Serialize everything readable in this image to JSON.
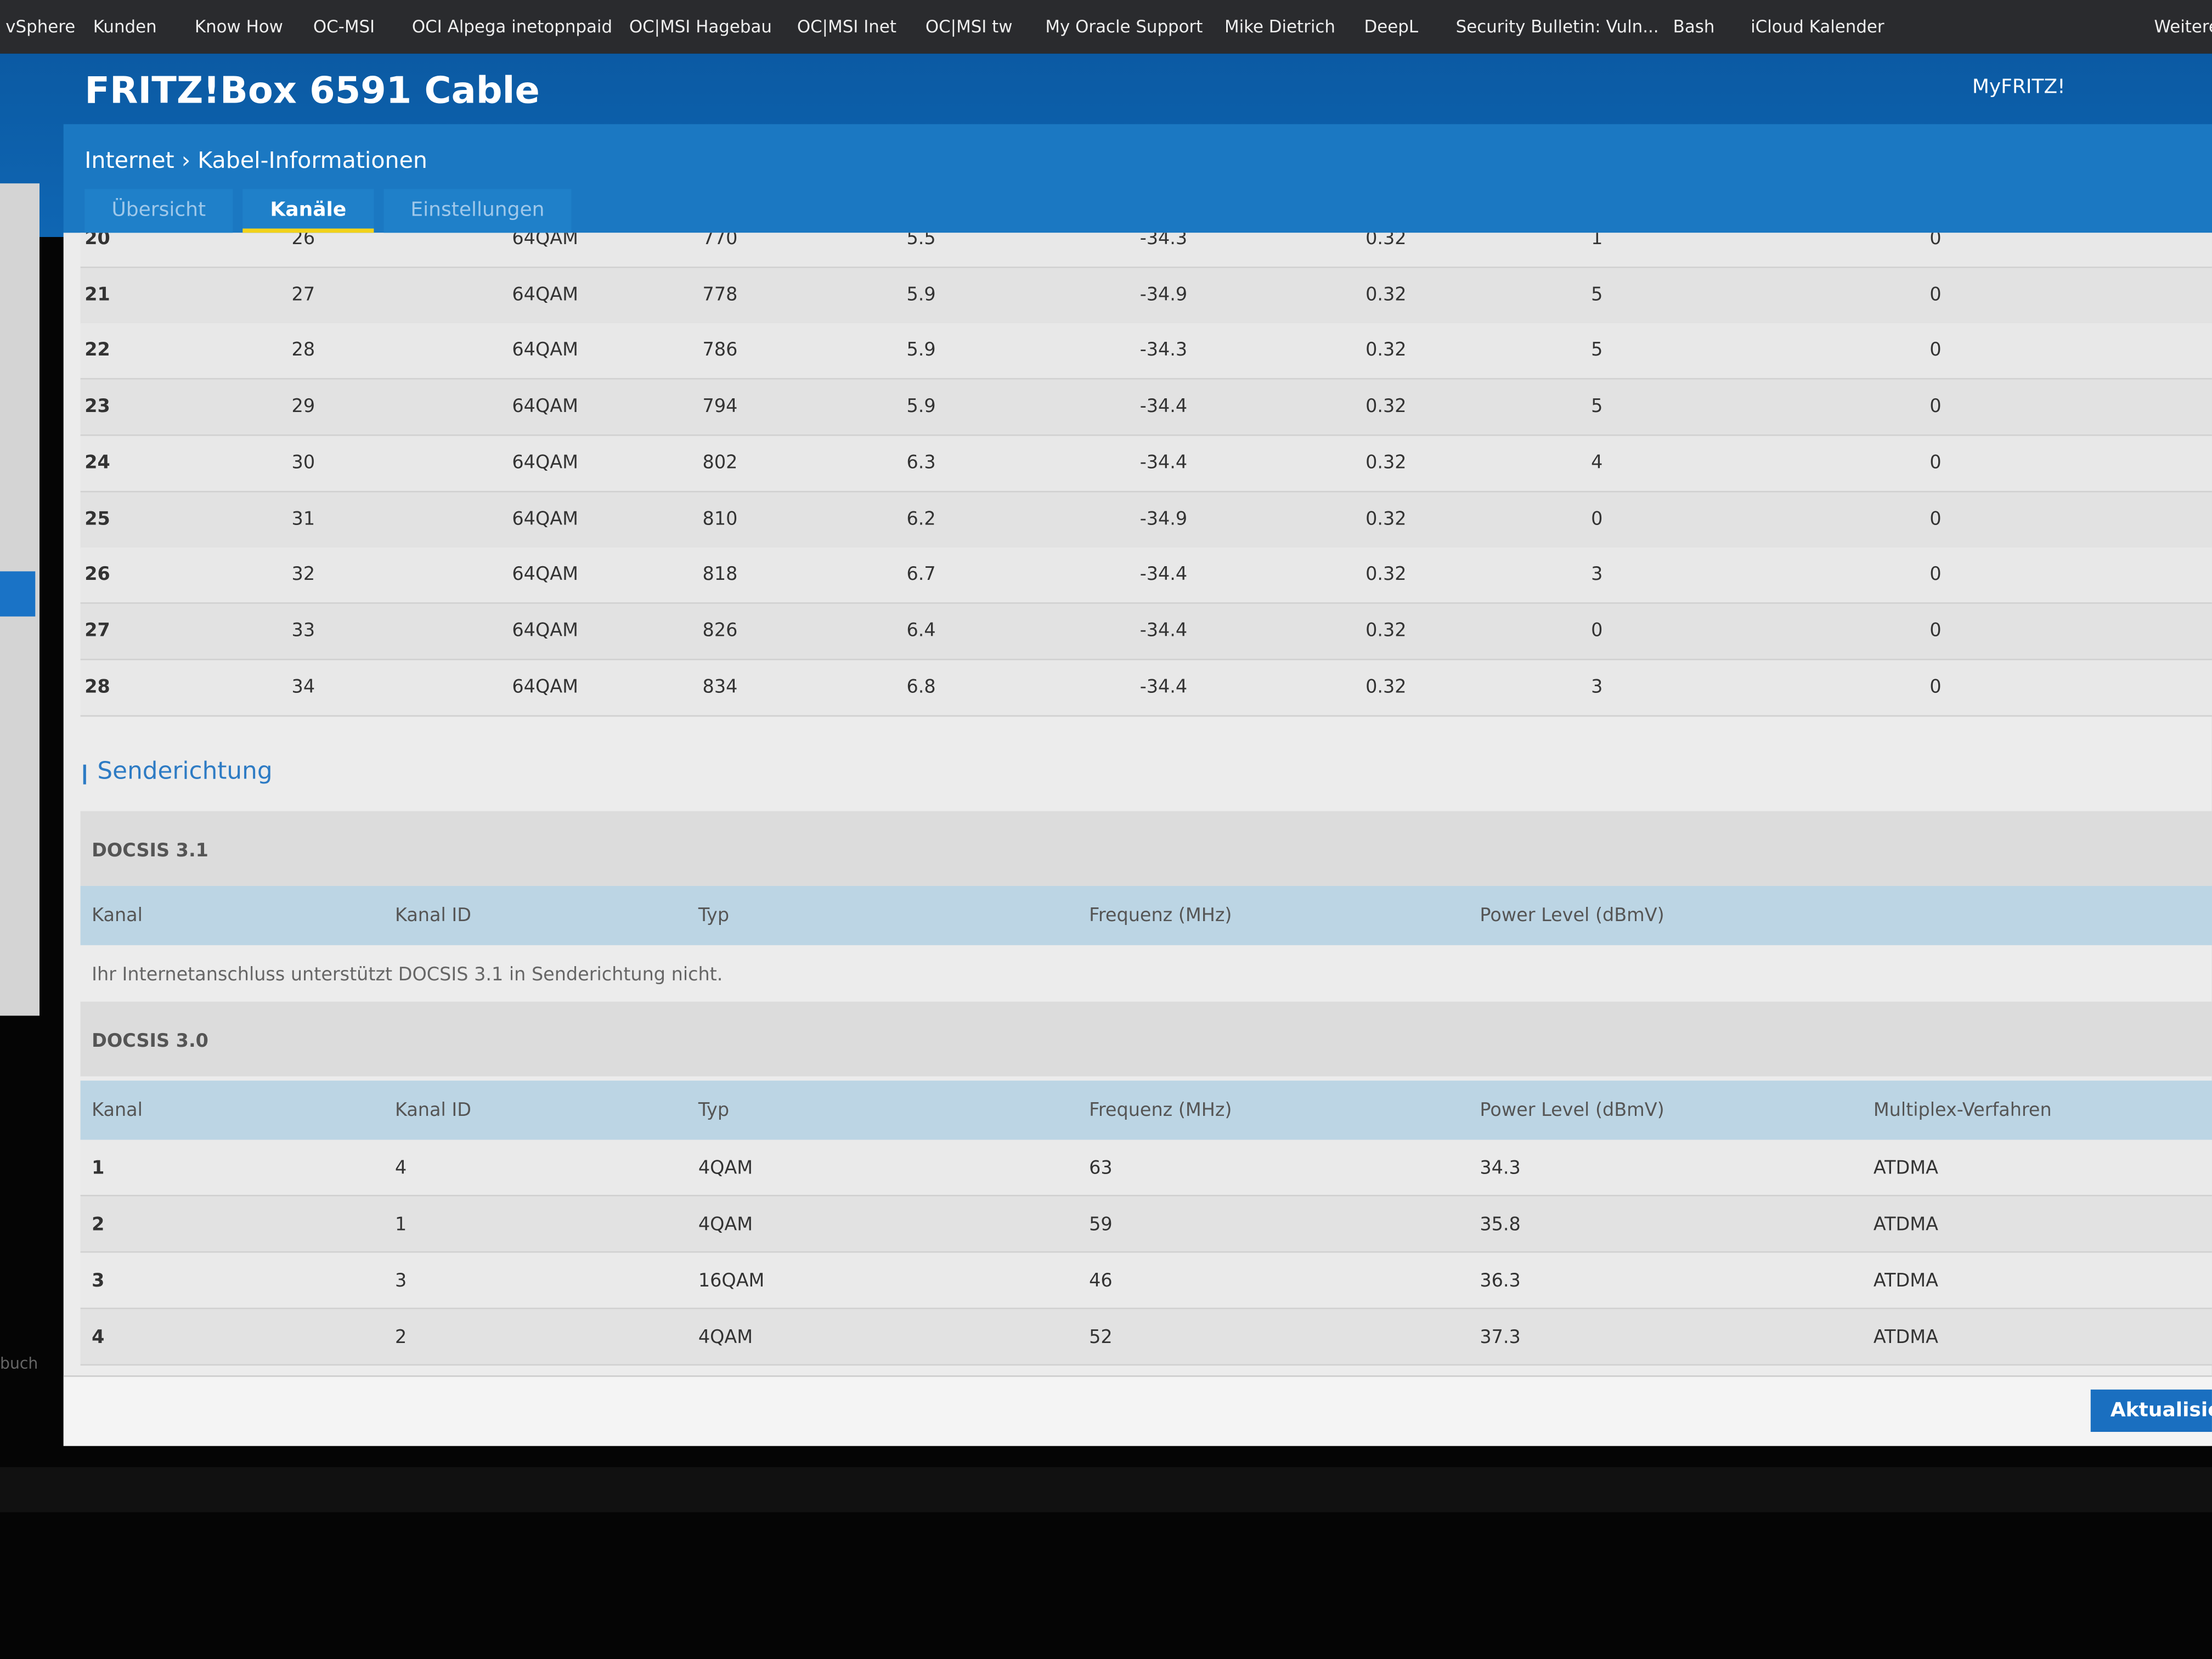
{
  "bookmarks": [
    "vSphere",
    "Kunden",
    "Know How",
    "OC-MSI",
    "OCI Alpega inetopnpaid",
    "OC|MSI Hagebau",
    "OC|MSI Inet",
    "OC|MSI tw",
    "My Oracle Support",
    "Mike Dietrich",
    "DeepL",
    "Security Bulletin: Vuln...",
    "Bash",
    "iCloud Kalender",
    "Weitere"
  ],
  "header": {
    "title": "FRITZ!Box 6591 Cable",
    "account": "MyFRITZ!"
  },
  "breadcrumb": [
    "Internet",
    "Kabel-Informationen"
  ],
  "tabs": [
    "Übersicht",
    "Kanäle",
    "Einstellungen"
  ],
  "downstream": {
    "rows": [
      [
        "20",
        "26",
        "64QAM",
        "770",
        "5.5",
        "-34.3",
        "0.32",
        "1",
        "0"
      ],
      [
        "21",
        "27",
        "64QAM",
        "778",
        "5.9",
        "-34.9",
        "0.32",
        "5",
        "0"
      ],
      [
        "22",
        "28",
        "64QAM",
        "786",
        "5.9",
        "-34.3",
        "0.32",
        "5",
        "0"
      ],
      [
        "23",
        "29",
        "64QAM",
        "794",
        "5.9",
        "-34.4",
        "0.32",
        "5",
        "0"
      ],
      [
        "24",
        "30",
        "64QAM",
        "802",
        "6.3",
        "-34.4",
        "0.32",
        "4",
        "0"
      ],
      [
        "25",
        "31",
        "64QAM",
        "810",
        "6.2",
        "-34.9",
        "0.32",
        "0",
        "0"
      ],
      [
        "26",
        "32",
        "64QAM",
        "818",
        "6.7",
        "-34.4",
        "0.32",
        "3",
        "0"
      ],
      [
        "27",
        "33",
        "64QAM",
        "826",
        "6.4",
        "-34.4",
        "0.32",
        "0",
        "0"
      ],
      [
        "28",
        "34",
        "64QAM",
        "834",
        "6.8",
        "-34.4",
        "0.32",
        "3",
        "0"
      ]
    ]
  },
  "upstream": {
    "title": "Senderichtung",
    "docsis31": {
      "label": "DOCSIS 3.1",
      "columns": [
        "Kanal",
        "Kanal ID",
        "Typ",
        "Frequenz (MHz)",
        "Power Level (dBmV)"
      ],
      "note": "Ihr Internetanschluss unterstützt DOCSIS 3.1 in Senderichtung nicht."
    },
    "docsis30": {
      "label": "DOCSIS 3.0",
      "columns": [
        "Kanal",
        "Kanal ID",
        "Typ",
        "Frequenz (MHz)",
        "Power Level (dBmV)",
        "Multiplex-Verfahren"
      ],
      "rows": [
        [
          "1",
          "4",
          "4QAM",
          "63",
          "34.3",
          "ATDMA"
        ],
        [
          "2",
          "1",
          "4QAM",
          "59",
          "35.8",
          "ATDMA"
        ],
        [
          "3",
          "3",
          "16QAM",
          "46",
          "36.3",
          "ATDMA"
        ],
        [
          "4",
          "2",
          "4QAM",
          "52",
          "37.3",
          "ATDMA"
        ]
      ]
    }
  },
  "sidebar_fragment": "buch",
  "button": "Aktualisiere"
}
